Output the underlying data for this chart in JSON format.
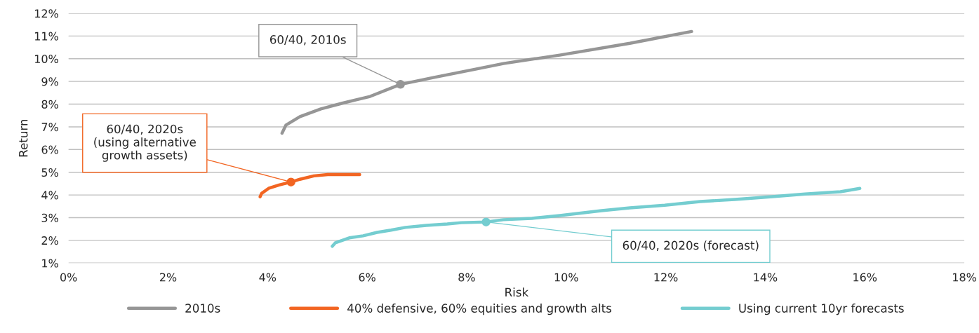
{
  "chart_data": {
    "type": "line",
    "xlabel": "Risk",
    "ylabel": "Return",
    "xlim": [
      0,
      18
    ],
    "ylim": [
      1,
      12
    ],
    "xticks": [
      {
        "value": 0,
        "label": "0%"
      },
      {
        "value": 2,
        "label": "2%"
      },
      {
        "value": 4,
        "label": "4%"
      },
      {
        "value": 6,
        "label": "6%"
      },
      {
        "value": 8,
        "label": "8%"
      },
      {
        "value": 10,
        "label": "10%"
      },
      {
        "value": 12,
        "label": "12%"
      },
      {
        "value": 14,
        "label": "14%"
      },
      {
        "value": 16,
        "label": "16%"
      },
      {
        "value": 18,
        "label": "18%"
      }
    ],
    "yticks": [
      {
        "value": 1,
        "label": "1%"
      },
      {
        "value": 2,
        "label": "2%"
      },
      {
        "value": 3,
        "label": "3%"
      },
      {
        "value": 4,
        "label": "4%"
      },
      {
        "value": 5,
        "label": "5%"
      },
      {
        "value": 6,
        "label": "6%"
      },
      {
        "value": 7,
        "label": "7%"
      },
      {
        "value": 8,
        "label": "8%"
      },
      {
        "value": 9,
        "label": "9%"
      },
      {
        "value": 10,
        "label": "10%"
      },
      {
        "value": 11,
        "label": "11%"
      },
      {
        "value": 12,
        "label": "12%"
      }
    ],
    "grid": "y",
    "legend": "bottom",
    "marker": "none",
    "line_style": "solid",
    "series": [
      {
        "name": "2010s",
        "color": "#969696",
        "x": [
          4.29,
          4.37,
          4.65,
          5.07,
          5.5,
          6.06,
          6.67,
          7.33,
          8.18,
          8.74,
          9.87,
          11.28,
          12.52
        ],
        "values": [
          6.72,
          7.08,
          7.45,
          7.79,
          8.04,
          8.34,
          8.87,
          9.17,
          9.54,
          9.79,
          10.16,
          10.68,
          11.2
        ]
      },
      {
        "name": "40% defensive, 60% equities and growth alts",
        "color": "#f26522",
        "x": [
          3.85,
          3.88,
          4.02,
          4.23,
          4.47,
          4.65,
          4.93,
          5.21,
          5.85
        ],
        "values": [
          3.92,
          4.07,
          4.29,
          4.44,
          4.57,
          4.69,
          4.84,
          4.9,
          4.9
        ]
      },
      {
        "name": "Using current 10yr forecasts",
        "color": "#74cdd0",
        "x": [
          5.3,
          5.36,
          5.64,
          5.92,
          6.2,
          6.48,
          6.77,
          7.19,
          7.61,
          7.89,
          8.39,
          8.74,
          9.31,
          9.87,
          10.71,
          11.28,
          11.98,
          12.69,
          13.39,
          14.1,
          14.8,
          15.51,
          15.9
        ],
        "values": [
          1.74,
          1.89,
          2.11,
          2.2,
          2.35,
          2.45,
          2.57,
          2.66,
          2.72,
          2.78,
          2.81,
          2.91,
          2.97,
          3.09,
          3.31,
          3.43,
          3.55,
          3.71,
          3.8,
          3.92,
          4.04,
          4.14,
          4.29
        ]
      }
    ],
    "annotations": [
      {
        "text": "60/40, 2010s",
        "x": 6.67,
        "y": 8.87
      },
      {
        "text": "60/40, 2020s\n(using alternative\ngrowth assets)",
        "x": 4.47,
        "y": 4.57
      },
      {
        "text": "60/40, 2020s (forecast)",
        "x": 8.39,
        "y": 2.81
      }
    ]
  }
}
